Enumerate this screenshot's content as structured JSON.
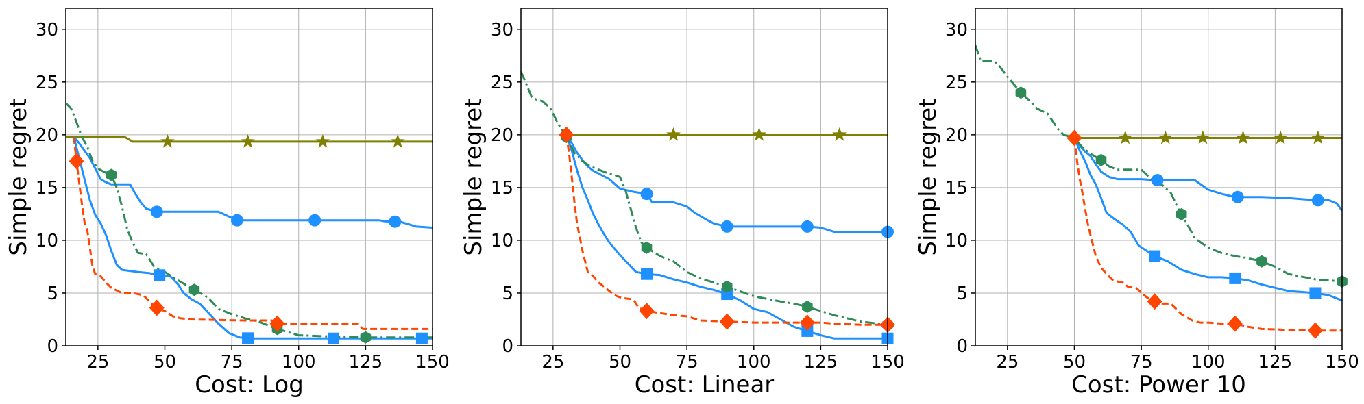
{
  "colors": {
    "olive": "#808000",
    "blue": "#1e90ff",
    "green": "#2e8b57",
    "orange": "#ff4500",
    "grid": "#b0b0b0",
    "axis": "#000000"
  },
  "chart_data": [
    {
      "type": "line",
      "xlabel": "Cost: Log",
      "ylabel": "Simple regret",
      "xlim": [
        13,
        150
      ],
      "ylim": [
        0,
        32
      ],
      "xticks": [
        25,
        50,
        75,
        100,
        125,
        150
      ],
      "yticks": [
        0,
        5,
        10,
        15,
        20,
        25,
        30
      ],
      "grid": true,
      "series": [
        {
          "style": "solid",
          "color": "olive",
          "marker": "star",
          "x": [
            13,
            35,
            38,
            150
          ],
          "y": [
            19.8,
            19.8,
            19.35,
            19.35
          ],
          "marker_x": [
            51,
            81,
            109,
            137
          ]
        },
        {
          "style": "solid",
          "color": "blue",
          "marker": "circle",
          "x": [
            16,
            18,
            20,
            22,
            24,
            26,
            28,
            30,
            37,
            39,
            41,
            43,
            47,
            70,
            77,
            80,
            90,
            100,
            110,
            120,
            130,
            132,
            138,
            144,
            150
          ],
          "y": [
            19.8,
            19.2,
            18.5,
            17.8,
            16.8,
            15.8,
            15.5,
            15.3,
            15.3,
            14.4,
            13.6,
            13.0,
            12.7,
            12.7,
            11.9,
            11.9,
            11.9,
            11.9,
            11.9,
            11.9,
            11.9,
            11.8,
            11.75,
            11.3,
            11.2
          ],
          "marker_x": [
            47,
            77,
            106,
            136
          ]
        },
        {
          "style": "solid",
          "color": "blue",
          "marker": "square",
          "x": [
            16,
            18,
            20,
            22,
            24,
            26,
            28,
            30,
            32,
            34,
            37,
            40,
            44,
            48,
            52,
            55,
            57,
            60,
            63,
            66,
            70,
            74,
            78,
            82,
            95,
            113,
            130,
            145,
            150
          ],
          "y": [
            19.8,
            17.8,
            15.8,
            13.8,
            12.4,
            11.6,
            10.5,
            9.0,
            7.7,
            7.2,
            7.1,
            7.0,
            6.9,
            6.7,
            6.6,
            5.8,
            5.0,
            4.4,
            4.0,
            3.2,
            2.1,
            1.2,
            0.8,
            0.7,
            0.7,
            0.7,
            0.7,
            0.7,
            0.7
          ],
          "marker_x": [
            48,
            81,
            113,
            146
          ]
        },
        {
          "style": "dashdot",
          "color": "green",
          "marker": "hexagon",
          "x": [
            13,
            15,
            17,
            19,
            21,
            23,
            25,
            28,
            30,
            32,
            34,
            36,
            38,
            40,
            43,
            46,
            50,
            55,
            61,
            66,
            70,
            75,
            80,
            85,
            92,
            100,
            110,
            120,
            125,
            130,
            140,
            150
          ],
          "y": [
            23.0,
            22.5,
            21.2,
            19.8,
            18.9,
            17.5,
            16.8,
            16.4,
            16.2,
            15.0,
            13.2,
            11.0,
            9.8,
            8.8,
            8.7,
            7.5,
            7.0,
            6.2,
            5.3,
            4.6,
            3.5,
            3.0,
            2.6,
            2.3,
            1.6,
            1.0,
            0.9,
            0.85,
            0.8,
            0.8,
            0.8,
            0.8
          ],
          "marker_x": [
            30,
            61,
            92,
            125
          ]
        },
        {
          "style": "dashed",
          "color": "orange",
          "marker": "diamond",
          "x": [
            16,
            17,
            18,
            19,
            20,
            21,
            22,
            23,
            24,
            26,
            28,
            30,
            34,
            38,
            42,
            45,
            47,
            50,
            53,
            56,
            60,
            70,
            80,
            90,
            92,
            100,
            110,
            120,
            122,
            124,
            130,
            140,
            150
          ],
          "y": [
            19.8,
            17.5,
            15.5,
            13.5,
            11.7,
            11.0,
            9.3,
            7.5,
            6.8,
            6.6,
            6.0,
            5.5,
            5.0,
            5.0,
            4.8,
            4.0,
            3.6,
            3.3,
            2.8,
            2.6,
            2.5,
            2.45,
            2.4,
            2.4,
            2.1,
            2.1,
            2.1,
            2.1,
            2.1,
            1.6,
            1.6,
            1.6,
            1.6
          ],
          "marker_x": [
            17,
            47,
            92
          ]
        }
      ]
    },
    {
      "type": "line",
      "xlabel": "Cost: Linear",
      "ylabel": "Simple regret",
      "xlim": [
        13,
        150
      ],
      "ylim": [
        0,
        32
      ],
      "xticks": [
        25,
        50,
        75,
        100,
        125,
        150
      ],
      "yticks": [
        0,
        5,
        10,
        15,
        20,
        25,
        30
      ],
      "grid": true,
      "series": [
        {
          "style": "solid",
          "color": "olive",
          "marker": "star",
          "x": [
            30,
            150
          ],
          "y": [
            20.0,
            20.0
          ],
          "marker_x": [
            70,
            102,
            132
          ]
        },
        {
          "style": "solid",
          "color": "blue",
          "marker": "circle",
          "x": [
            30,
            32,
            34,
            36,
            38,
            40,
            43,
            46,
            50,
            55,
            60,
            62,
            70,
            75,
            78,
            82,
            85,
            90,
            100,
            110,
            120,
            125,
            130,
            140,
            150
          ],
          "y": [
            20.0,
            19.2,
            18.3,
            17.6,
            17.0,
            16.6,
            16.2,
            15.8,
            14.9,
            14.6,
            14.4,
            13.6,
            13.6,
            13.2,
            12.6,
            12.0,
            11.6,
            11.3,
            11.3,
            11.3,
            11.3,
            11.2,
            10.8,
            10.8,
            10.8
          ],
          "marker_x": [
            60,
            90,
            120,
            150
          ]
        },
        {
          "style": "solid",
          "color": "blue",
          "marker": "square",
          "x": [
            30,
            32,
            34,
            36,
            38,
            40,
            42,
            44,
            46,
            48,
            50,
            53,
            56,
            60,
            65,
            70,
            75,
            80,
            85,
            90,
            95,
            100,
            105,
            110,
            115,
            120,
            125,
            130,
            140,
            150
          ],
          "y": [
            20.0,
            18.5,
            16.6,
            15.0,
            13.8,
            12.5,
            11.5,
            10.6,
            9.8,
            9.2,
            8.6,
            7.8,
            7.0,
            6.8,
            6.7,
            6.3,
            6.0,
            5.6,
            5.3,
            4.9,
            4.3,
            3.5,
            3.2,
            2.5,
            1.8,
            1.4,
            1.0,
            0.7,
            0.7,
            0.7
          ],
          "marker_x": [
            60,
            90,
            120,
            150
          ]
        },
        {
          "style": "dashdot",
          "color": "green",
          "marker": "hexagon",
          "x": [
            13,
            15,
            17,
            19,
            21,
            24,
            27,
            30,
            33,
            36,
            39,
            42,
            45,
            48,
            50,
            52,
            54,
            56,
            58,
            60,
            65,
            70,
            75,
            80,
            85,
            90,
            100,
            110,
            115,
            120,
            125,
            130,
            140,
            150
          ],
          "y": [
            26.0,
            24.8,
            23.6,
            23.3,
            23.2,
            22.5,
            21.0,
            19.8,
            18.3,
            17.5,
            17.0,
            16.7,
            16.4,
            16.2,
            16.0,
            14.8,
            13.0,
            11.2,
            9.8,
            9.3,
            8.5,
            8.0,
            7.0,
            6.4,
            6.0,
            5.6,
            4.7,
            4.2,
            4.0,
            3.7,
            3.3,
            2.9,
            2.3,
            2.0
          ],
          "marker_x": [
            30,
            60,
            90,
            120,
            150
          ]
        },
        {
          "style": "dashed",
          "color": "orange",
          "marker": "diamond",
          "x": [
            30,
            31,
            32,
            33,
            34,
            35,
            36,
            37,
            38,
            40,
            42,
            45,
            48,
            50,
            52,
            55,
            57,
            60,
            65,
            70,
            75,
            80,
            90,
            100,
            110,
            120,
            125,
            130,
            140,
            150
          ],
          "y": [
            20.0,
            18.2,
            16.0,
            13.6,
            11.5,
            10.3,
            9.0,
            8.0,
            7.0,
            6.6,
            6.0,
            5.4,
            4.8,
            4.6,
            4.5,
            4.4,
            3.6,
            3.3,
            3.1,
            2.9,
            2.8,
            2.4,
            2.3,
            2.2,
            2.2,
            2.2,
            2.2,
            2.1,
            2.0,
            2.0
          ],
          "marker_x": [
            30,
            60,
            90,
            120,
            150
          ]
        }
      ]
    },
    {
      "type": "line",
      "xlabel": "Cost: Power 10",
      "ylabel": "Simple regret",
      "xlim": [
        13,
        150
      ],
      "ylim": [
        0,
        32
      ],
      "xticks": [
        25,
        50,
        75,
        100,
        125,
        150
      ],
      "yticks": [
        0,
        5,
        10,
        15,
        20,
        25,
        30
      ],
      "grid": true,
      "series": [
        {
          "style": "solid",
          "color": "olive",
          "marker": "star",
          "x": [
            50,
            150
          ],
          "y": [
            19.7,
            19.7
          ],
          "marker_x": [
            69,
            84,
            98,
            113,
            127,
            141
          ]
        },
        {
          "style": "solid",
          "color": "blue",
          "marker": "circle",
          "x": [
            50,
            52,
            54,
            56,
            58,
            60,
            63,
            66,
            70,
            75,
            80,
            85,
            90,
            95,
            100,
            105,
            110,
            120,
            130,
            140,
            145,
            148,
            150
          ],
          "y": [
            19.7,
            19.0,
            18.4,
            18.0,
            17.2,
            16.5,
            16.0,
            15.8,
            15.8,
            15.8,
            15.7,
            15.7,
            15.7,
            15.7,
            14.8,
            14.4,
            14.1,
            14.1,
            14.0,
            13.8,
            13.8,
            13.5,
            12.8
          ],
          "marker_x": [
            81,
            111,
            141
          ]
        },
        {
          "style": "solid",
          "color": "blue",
          "marker": "square",
          "x": [
            50,
            52,
            54,
            56,
            58,
            60,
            62,
            65,
            68,
            71,
            74,
            77,
            80,
            85,
            90,
            95,
            100,
            105,
            110,
            115,
            120,
            130,
            140,
            145,
            150
          ],
          "y": [
            19.7,
            18.5,
            17.5,
            16.2,
            15.3,
            14.0,
            12.6,
            12.0,
            11.5,
            10.8,
            9.5,
            9.0,
            8.5,
            8.0,
            7.2,
            6.8,
            6.5,
            6.5,
            6.4,
            6.2,
            5.8,
            5.2,
            5.0,
            4.8,
            4.3
          ],
          "marker_x": [
            80,
            110,
            140
          ]
        },
        {
          "style": "dashdot",
          "color": "green",
          "marker": "hexagon",
          "x": [
            13,
            15,
            20,
            22,
            25,
            28,
            30,
            33,
            36,
            40,
            44,
            46,
            50,
            53,
            56,
            60,
            63,
            66,
            70,
            75,
            80,
            83,
            86,
            89,
            92,
            95,
            100,
            105,
            110,
            115,
            120,
            125,
            130,
            140,
            150
          ],
          "y": [
            28.5,
            27.0,
            27.0,
            26.5,
            25.5,
            24.6,
            24.0,
            23.3,
            22.5,
            22.0,
            20.5,
            20.0,
            19.7,
            18.8,
            18.2,
            17.6,
            17.0,
            16.7,
            16.7,
            16.7,
            15.5,
            15.2,
            14.5,
            12.9,
            11.6,
            10.2,
            9.3,
            8.8,
            8.5,
            8.3,
            8.0,
            7.5,
            6.8,
            6.3,
            6.1
          ],
          "marker_x": [
            30,
            60,
            90,
            120,
            150
          ]
        },
        {
          "style": "dashed",
          "color": "orange",
          "marker": "diamond",
          "x": [
            50,
            51,
            52,
            53,
            54,
            55,
            56,
            57,
            58,
            60,
            62,
            64,
            66,
            68,
            70,
            73,
            77,
            80,
            83,
            86,
            90,
            94,
            97,
            100,
            105,
            110,
            115,
            120,
            126,
            130,
            140,
            150
          ],
          "y": [
            19.7,
            17.5,
            15.8,
            14.5,
            13.0,
            11.6,
            10.5,
            9.5,
            8.5,
            7.4,
            6.8,
            6.3,
            6.1,
            6.0,
            5.6,
            5.5,
            4.6,
            4.2,
            4.0,
            4.0,
            3.0,
            2.4,
            2.2,
            2.2,
            2.1,
            2.1,
            1.8,
            1.6,
            1.55,
            1.5,
            1.45,
            1.45
          ],
          "marker_x": [
            50,
            80,
            110,
            140
          ]
        }
      ]
    }
  ]
}
